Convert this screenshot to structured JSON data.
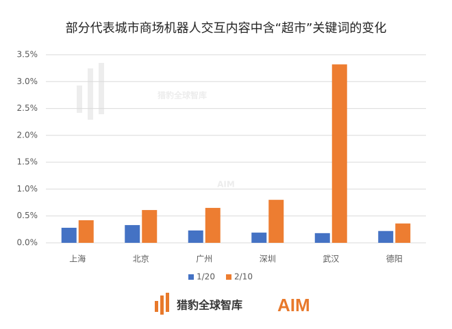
{
  "chart_data": {
    "type": "bar",
    "title": "部分代表城市商场机器人交互内容中含“超市”关键词的变化",
    "categories": [
      "上海",
      "北京",
      "广州",
      "深圳",
      "武汉",
      "德阳"
    ],
    "series": [
      {
        "name": "1/20",
        "color": "#4472c4",
        "values": [
          0.28,
          0.33,
          0.23,
          0.19,
          0.18,
          0.22
        ]
      },
      {
        "name": "2/10",
        "color": "#ed7d31",
        "values": [
          0.42,
          0.61,
          0.65,
          0.8,
          3.32,
          0.36
        ]
      }
    ],
    "ylim": [
      0,
      3.5
    ],
    "yticks": [
      {
        "value": 0,
        "label": "0.0%"
      },
      {
        "value": 0.5,
        "label": "0.5%"
      },
      {
        "value": 1,
        "label": "1.0%"
      },
      {
        "value": 1.5,
        "label": "1.5%"
      },
      {
        "value": 2,
        "label": "2.0%"
      },
      {
        "value": 2.5,
        "label": "2.5%"
      },
      {
        "value": 3,
        "label": "3.0%"
      },
      {
        "value": 3.5,
        "label": "3.5%"
      }
    ],
    "grid": true,
    "legend": "bottom"
  },
  "watermark": {
    "text": "猎豹全球智库",
    "logo": "AIM"
  },
  "footer": {
    "brand": "猎豹全球智库",
    "logo": "AIM"
  }
}
